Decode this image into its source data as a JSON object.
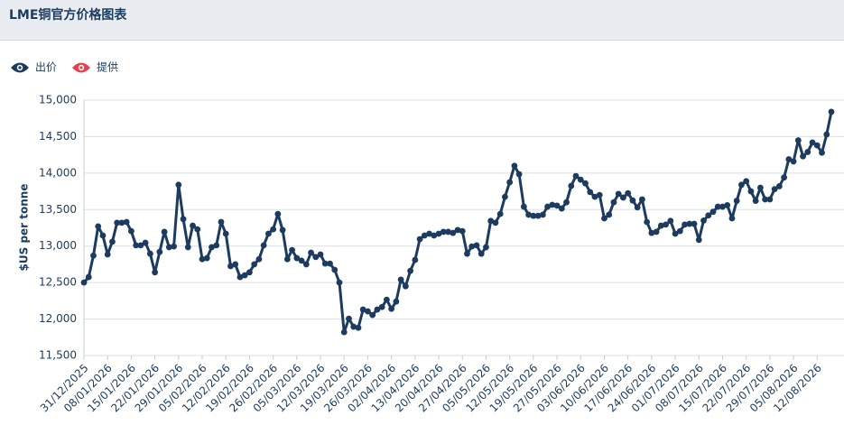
{
  "chart_data": {
    "type": "line",
    "title": "LME铜官方价格图表",
    "y_label": "$US per tonne",
    "categories": [
      "31/12/2025",
      null,
      null,
      null,
      null,
      "08/01/2026",
      null,
      null,
      null,
      null,
      "15/01/2026",
      null,
      null,
      null,
      null,
      "22/01/2026",
      null,
      null,
      null,
      null,
      "29/01/2026",
      null,
      null,
      null,
      null,
      "05/02/2026",
      null,
      null,
      null,
      null,
      "12/02/2026",
      null,
      null,
      null,
      null,
      "19/02/2026",
      null,
      null,
      null,
      null,
      "26/02/2026",
      null,
      null,
      null,
      null,
      "05/03/2026",
      null,
      null,
      null,
      null,
      "12/03/2026",
      null,
      null,
      null,
      null,
      "19/03/2026",
      null,
      null,
      null,
      null,
      "26/03/2026",
      null,
      null,
      null,
      null,
      "02/04/2026",
      null,
      null,
      null,
      null,
      "13/04/2026",
      null,
      null,
      null,
      null,
      "20/04/2026",
      null,
      null,
      null,
      null,
      "27/04/2026",
      null,
      null,
      null,
      null,
      "05/05/2026",
      null,
      null,
      null,
      null,
      "12/05/2026",
      null,
      null,
      null,
      null,
      "19/05/2026",
      null,
      null,
      null,
      null,
      "27/05/2026",
      null,
      null,
      null,
      null,
      "03/06/2026",
      null,
      null,
      null,
      null,
      "10/06/2026",
      null,
      null,
      null,
      null,
      "17/06/2026",
      null,
      null,
      null,
      null,
      "24/06/2026",
      null,
      null,
      null,
      null,
      "01/07/2026",
      null,
      null,
      null,
      null,
      "08/07/2026",
      null,
      null,
      null,
      null,
      "15/07/2026",
      null,
      null,
      null,
      null,
      "22/07/2026",
      null,
      null,
      null,
      null,
      "29/07/2026",
      null,
      null,
      null,
      null,
      "05/08/2026",
      null,
      null,
      null,
      null,
      "12/08/2026",
      null,
      null,
      null
    ],
    "series": [
      {
        "name": "出价",
        "color": "#1c3b5e",
        "visible": true,
        "values": [
          12500,
          12575,
          12870,
          13270,
          13145,
          12885,
          13060,
          13320,
          13320,
          13330,
          13205,
          13010,
          13010,
          13045,
          12895,
          12640,
          12920,
          13195,
          12985,
          12995,
          13840,
          13370,
          12985,
          13280,
          13230,
          12820,
          12835,
          12985,
          13010,
          13330,
          13170,
          12725,
          12750,
          12575,
          12600,
          12640,
          12750,
          12820,
          13010,
          13170,
          13230,
          13440,
          13220,
          12820,
          12945,
          12835,
          12800,
          12750,
          12910,
          12850,
          12885,
          12760,
          12760,
          12675,
          12500,
          11820,
          12005,
          11895,
          11880,
          12130,
          12105,
          12055,
          12130,
          12165,
          12265,
          12140,
          12240,
          12540,
          12450,
          12660,
          12810,
          13095,
          13145,
          13170,
          13145,
          13170,
          13195,
          13195,
          13180,
          13220,
          13205,
          12895,
          12995,
          13010,
          12895,
          12985,
          13345,
          13320,
          13440,
          13675,
          13875,
          14100,
          13985,
          13540,
          13430,
          13415,
          13415,
          13430,
          13540,
          13565,
          13555,
          13515,
          13600,
          13825,
          13960,
          13910,
          13860,
          13740,
          13675,
          13700,
          13380,
          13430,
          13600,
          13715,
          13665,
          13725,
          13625,
          13530,
          13640,
          13330,
          13180,
          13195,
          13280,
          13295,
          13345,
          13170,
          13205,
          13295,
          13305,
          13305,
          13085,
          13350,
          13420,
          13470,
          13540,
          13540,
          13560,
          13380,
          13620,
          13840,
          13890,
          13750,
          13620,
          13800,
          13640,
          13640,
          13780,
          13820,
          13940,
          14190,
          14160,
          14450,
          14230,
          14290,
          14420,
          14380,
          14280,
          14530,
          14840
        ]
      },
      {
        "name": "提供",
        "color": "#e8404f",
        "visible": false
      }
    ],
    "ylim": [
      11500,
      15000
    ],
    "yticks": [
      {
        "value": 11500,
        "label": "11,500"
      },
      {
        "value": 12000,
        "label": "12,000"
      },
      {
        "value": 12500,
        "label": "12,500"
      },
      {
        "value": 13000,
        "label": "13,000"
      },
      {
        "value": 13500,
        "label": "13,500"
      },
      {
        "value": 14000,
        "label": "14,000"
      },
      {
        "value": 14500,
        "label": "14,500"
      },
      {
        "value": 15000,
        "label": "15,000"
      }
    ],
    "grid": true
  }
}
